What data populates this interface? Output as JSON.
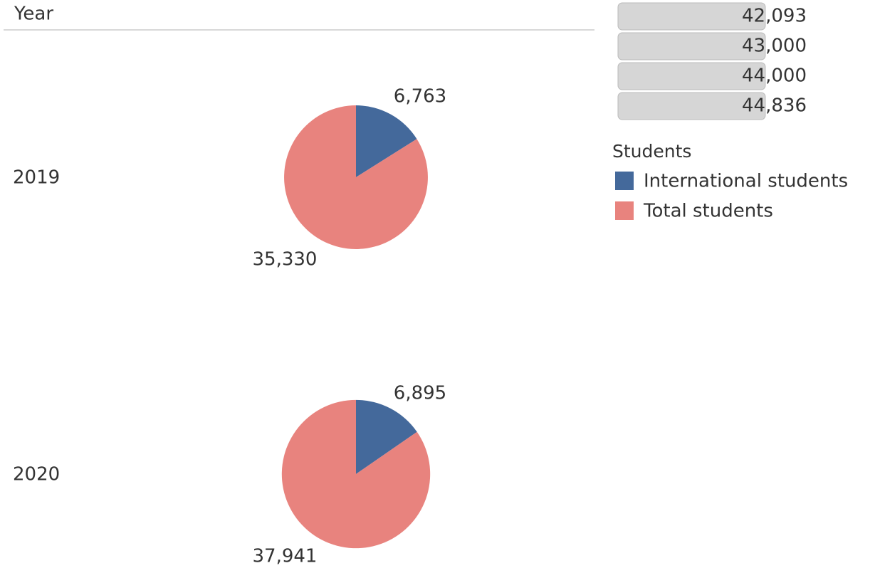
{
  "header": "Year",
  "legend_title": "Students",
  "size_legend": {
    "values": [
      42093,
      43000,
      44000,
      44836
    ],
    "value_labels": [
      "42,093",
      "43,000",
      "44,000",
      "44,836"
    ]
  },
  "chart_data": [
    {
      "type": "pie",
      "title": "2019",
      "categories": [
        "International students",
        "Total students"
      ],
      "values": [
        6763,
        35330
      ],
      "value_labels": [
        "6,763",
        "35,330"
      ],
      "colors": [
        "#44699b",
        "#e8837e"
      ]
    },
    {
      "type": "pie",
      "title": "2020",
      "categories": [
        "International students",
        "Total students"
      ],
      "values": [
        6895,
        37941
      ],
      "value_labels": [
        "6,895",
        "37,941"
      ],
      "colors": [
        "#44699b",
        "#e8837e"
      ]
    }
  ]
}
